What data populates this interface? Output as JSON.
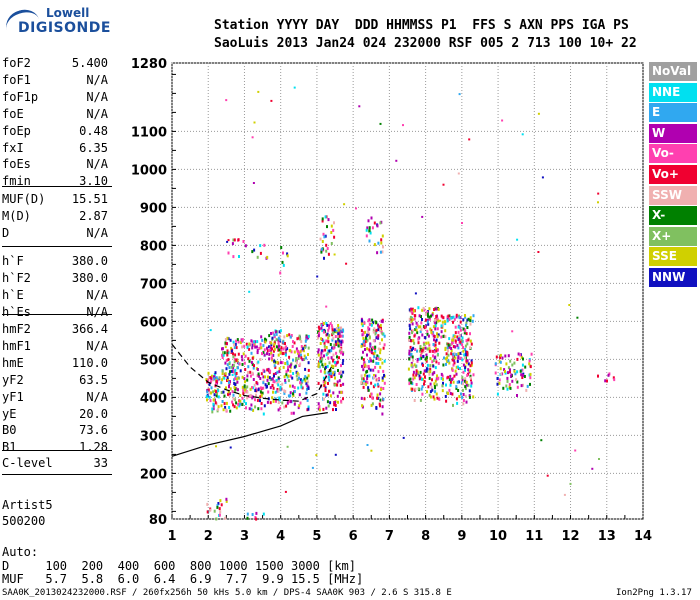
{
  "logo": {
    "line1": "Lowell",
    "line2": "DIGISONDE"
  },
  "header": {
    "line1": "Station YYYY DAY  DDD HHMMSS P1  FFS S AXN PPS IGA PS",
    "line2": "SaoLuis 2013 Jan24 024 232000 RSF 005 2 713 100 10+ 22"
  },
  "sidebar": {
    "groups": [
      [
        [
          "foF2",
          "5.400"
        ],
        [
          "foF1",
          "N/A"
        ],
        [
          "foF1p",
          "N/A"
        ],
        [
          "foE",
          "N/A"
        ],
        [
          "foEp",
          "0.48"
        ],
        [
          "fxI",
          "6.35"
        ],
        [
          "foEs",
          "N/A"
        ],
        [
          "fmin",
          "3.10"
        ]
      ],
      [
        [
          "MUF(D)",
          "15.51"
        ],
        [
          "M(D)",
          "2.87"
        ],
        [
          "D",
          "N/A"
        ]
      ],
      [
        [
          "h`F",
          "380.0"
        ],
        [
          "h`F2",
          "380.0"
        ],
        [
          "h`E",
          "N/A"
        ],
        [
          "h`Es",
          "N/A"
        ]
      ],
      [
        [
          "hmF2",
          "366.4"
        ],
        [
          "hmF1",
          "N/A"
        ],
        [
          "hmE",
          "110.0"
        ],
        [
          "yF2",
          "63.5"
        ],
        [
          "yF1",
          "N/A"
        ],
        [
          "yE",
          "20.0"
        ],
        [
          "B0",
          "73.6"
        ],
        [
          "B1",
          "1.28"
        ]
      ],
      [
        [
          "C-level",
          "33"
        ]
      ]
    ],
    "auto_label": "Auto:",
    "artist": "Artist5",
    "artist_version": "500200"
  },
  "footer": {
    "d_row": "D     100  200  400  600  800 1000 1500 3000 [km]",
    "muf_row": "MUF   5.7  5.8  6.0  6.4  6.9  7.7  9.9 15.5 [MHz]",
    "file_line": "SAA0K_2013024232000.RSF / 260fx256h 50 kHs 5.0 km / DPS-4 SAA0K 903 / 2.6 S 315.8 E",
    "version": "Ion2Png 1.3.17"
  },
  "legend": [
    {
      "label": "NoVal",
      "color": "#a0a0a0"
    },
    {
      "label": "NNE",
      "color": "#00e0f0"
    },
    {
      "label": "E",
      "color": "#30a8f0"
    },
    {
      "label": "W",
      "color": "#b000b0"
    },
    {
      "label": "Vo-",
      "color": "#ff40b0"
    },
    {
      "label": "Vo+",
      "color": "#f00030"
    },
    {
      "label": "SSW",
      "color": "#f0b0b0"
    },
    {
      "label": "X-",
      "color": "#008000"
    },
    {
      "label": "X+",
      "color": "#80c060"
    },
    {
      "label": "SSE",
      "color": "#d0d000"
    },
    {
      "label": "NNW",
      "color": "#1010c0"
    }
  ],
  "chart_data": {
    "type": "scatter",
    "xlim": [
      1,
      14
    ],
    "ylim": [
      80,
      1280
    ],
    "x_ticks": [
      "1",
      "2",
      "3",
      "4",
      "5",
      "6",
      "7",
      "8",
      "9",
      "10",
      "11",
      "12",
      "13",
      "14"
    ],
    "y_ticks": [
      "80",
      "200",
      "300",
      "400",
      "500",
      "600",
      "700",
      "800",
      "900",
      "1000",
      "1100",
      "1280"
    ],
    "clusters": [
      {
        "x": [
          1.9,
          2.35
        ],
        "y": [
          360,
          470
        ],
        "density": 0.9
      },
      {
        "x": [
          2.35,
          3.4
        ],
        "y": [
          360,
          560
        ],
        "density": 0.75
      },
      {
        "x": [
          3.4,
          4.2
        ],
        "y": [
          360,
          580
        ],
        "density": 0.75
      },
      {
        "x": [
          4.2,
          4.75
        ],
        "y": [
          360,
          570
        ],
        "density": 0.7
      },
      {
        "x": [
          5.0,
          5.7
        ],
        "y": [
          360,
          600
        ],
        "density": 0.9
      },
      {
        "x": [
          6.2,
          6.85
        ],
        "y": [
          360,
          610
        ],
        "density": 0.85
      },
      {
        "x": [
          7.5,
          8.35
        ],
        "y": [
          380,
          640
        ],
        "density": 0.85
      },
      {
        "x": [
          8.4,
          9.3
        ],
        "y": [
          380,
          620
        ],
        "density": 0.75
      },
      {
        "x": [
          9.9,
          10.9
        ],
        "y": [
          400,
          520
        ],
        "density": 0.45
      },
      {
        "x": [
          12.7,
          13.2
        ],
        "y": [
          440,
          470
        ],
        "density": 0.3
      },
      {
        "x": [
          2.5,
          3.6
        ],
        "y": [
          730,
          820
        ],
        "density": 0.12
      },
      {
        "x": [
          3.9,
          4.4
        ],
        "y": [
          730,
          810
        ],
        "density": 0.12
      },
      {
        "x": [
          5.05,
          5.45
        ],
        "y": [
          770,
          880
        ],
        "density": 0.4
      },
      {
        "x": [
          6.3,
          6.8
        ],
        "y": [
          770,
          880
        ],
        "density": 0.3
      },
      {
        "x": [
          1.9,
          2.5
        ],
        "y": [
          80,
          140
        ],
        "density": 0.35
      },
      {
        "x": [
          2.9,
          3.6
        ],
        "y": [
          80,
          100
        ],
        "density": 0.35
      }
    ],
    "profile_solid": {
      "x": [
        1,
        2,
        3,
        4,
        4.6,
        5.3
      ],
      "y": [
        245,
        275,
        297,
        325,
        350,
        360
      ]
    },
    "profile_dashed": {
      "x": [
        1,
        1.5,
        2,
        2.5,
        3,
        3.5,
        4,
        4.5,
        5,
        5.4
      ],
      "y": [
        540,
        480,
        440,
        420,
        405,
        398,
        393,
        390,
        410,
        480
      ]
    }
  }
}
